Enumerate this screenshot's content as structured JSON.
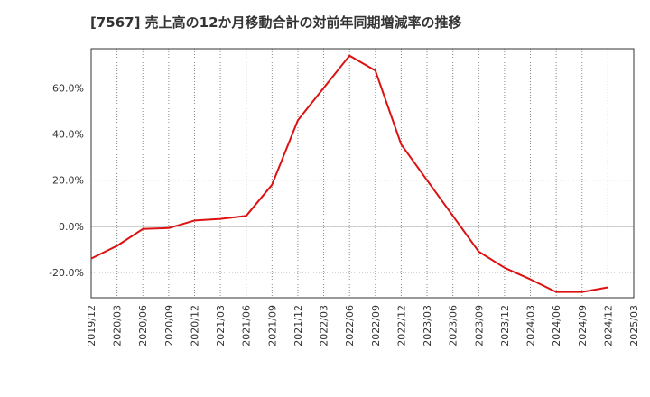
{
  "chart_data": {
    "type": "line",
    "title": "[7567]  売上高の12か月移動合計の対前年同期増減率の推移",
    "xlabel": "",
    "ylabel": "",
    "ylim": [
      -31,
      77
    ],
    "y_ticks": [
      -20,
      0,
      20,
      40,
      60
    ],
    "y_tick_labels": [
      "-20.0%",
      "0.0%",
      "20.0%",
      "40.0%",
      "60.0%"
    ],
    "categories": [
      "2019/12",
      "2020/03",
      "2020/06",
      "2020/09",
      "2020/12",
      "2021/03",
      "2021/06",
      "2021/09",
      "2021/12",
      "2022/03",
      "2022/06",
      "2022/09",
      "2022/12",
      "2023/03",
      "2023/06",
      "2023/09",
      "2023/12",
      "2024/03",
      "2024/06",
      "2024/09",
      "2024/12",
      "2025/03"
    ],
    "grid": true,
    "series": [
      {
        "name": "増減率",
        "color": "#dd1111",
        "values": [
          -14,
          -8.5,
          -1.2,
          -0.8,
          2.5,
          3.2,
          4.5,
          18,
          46,
          60,
          74,
          67.5,
          35.5,
          20,
          4.5,
          -11,
          -18,
          -23,
          -28.5,
          -28.5,
          -26.5,
          null
        ]
      }
    ]
  }
}
